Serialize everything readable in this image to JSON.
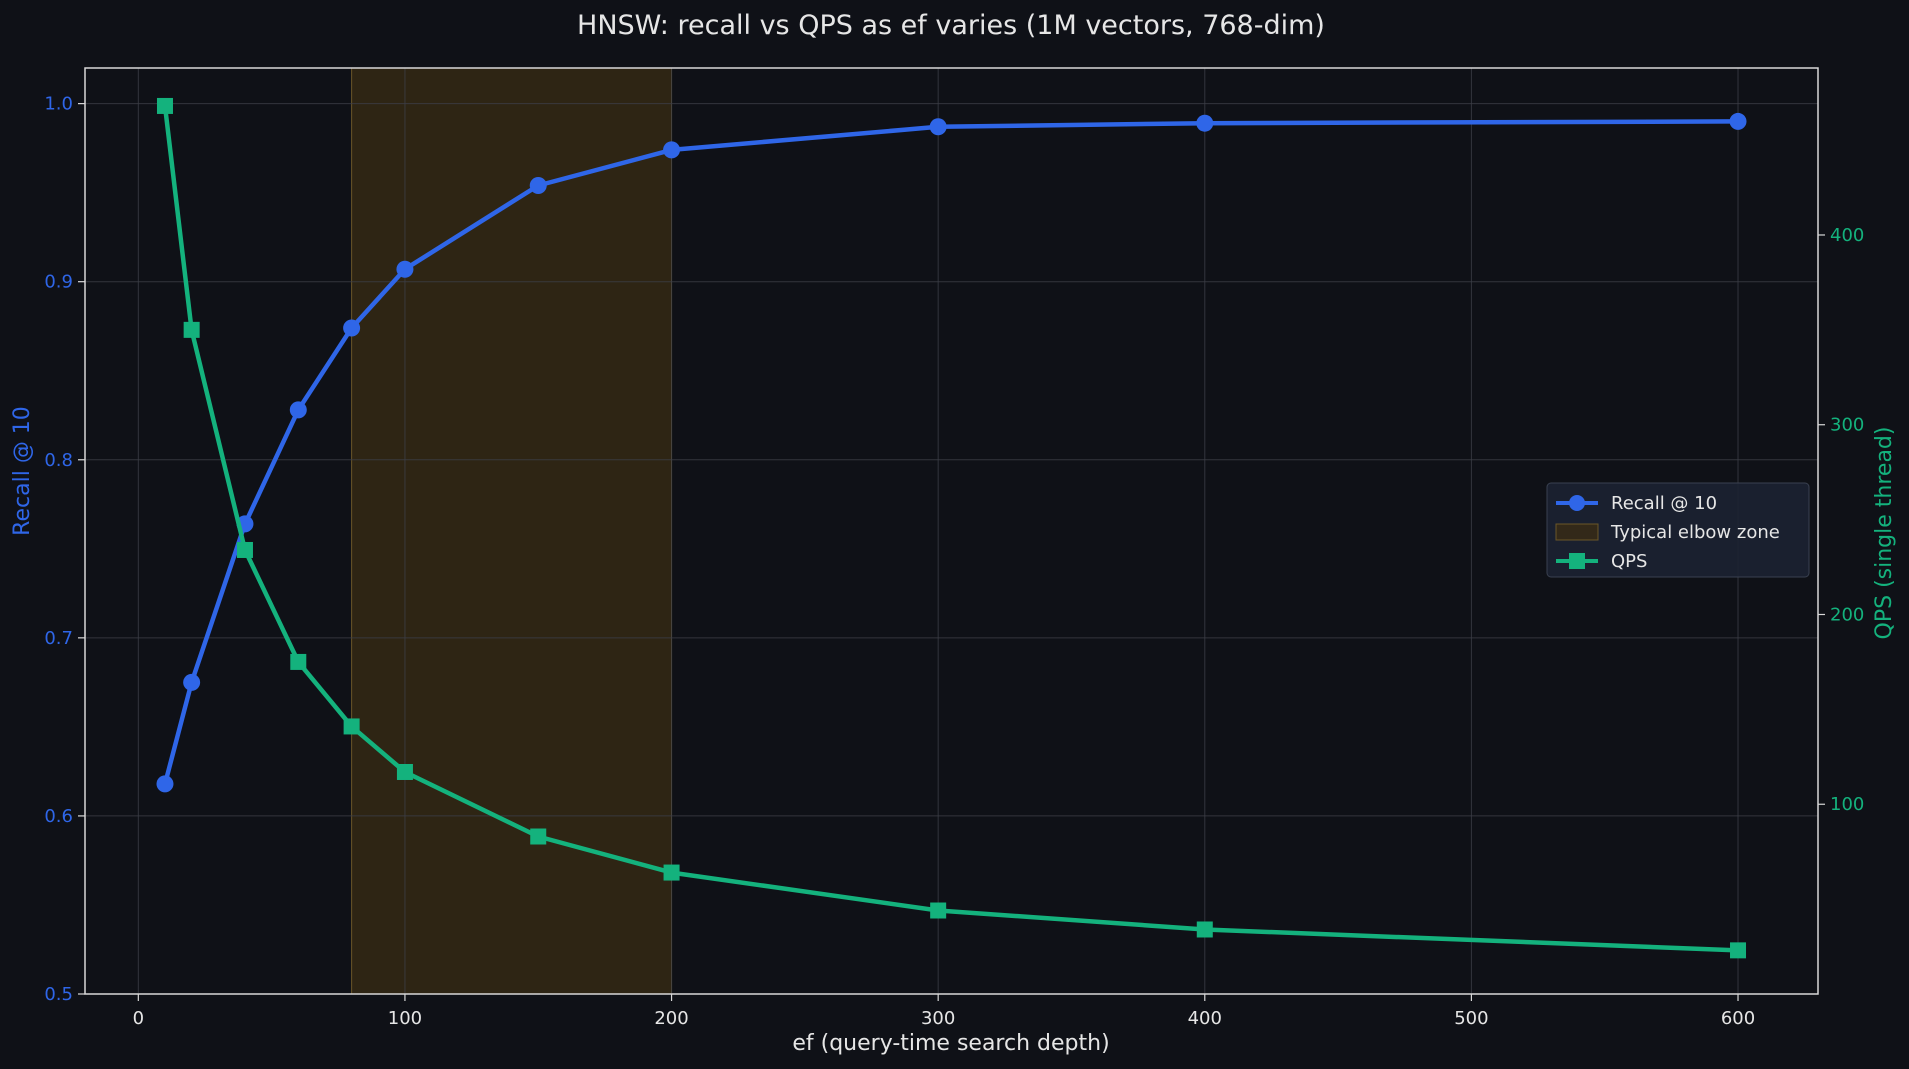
{
  "colors": {
    "background": "#0f1117",
    "recall": "#2f66e8",
    "qps": "#14b27d",
    "elbow_fill": "#3a2c14",
    "elbow_edge": "#6b5628",
    "grid": "#3c3f47",
    "text": "#e6e6e6",
    "legend_bg": "#1b2232",
    "legend_border": "#3a4150"
  },
  "chart_data": {
    "type": "line",
    "title": "HNSW: recall vs QPS as ef varies (1M vectors, 768-dim)",
    "xlabel": "ef (query-time search depth)",
    "ylabel_left": "Recall @ 10",
    "ylabel_right": "QPS (single thread)",
    "xlim": [
      -20,
      630
    ],
    "ylim_left": [
      0.5,
      1.02
    ],
    "ylim_right": [
      0,
      488
    ],
    "x_ticks": [
      0,
      100,
      200,
      300,
      400,
      500,
      600
    ],
    "y_left_ticks": [
      0.5,
      0.6,
      0.7,
      0.8,
      0.9,
      1.0
    ],
    "y_left_tick_labels": [
      "0.5",
      "0.6",
      "0.7",
      "0.8",
      "0.9",
      "1.0"
    ],
    "y_right_ticks": [
      100,
      200,
      300,
      400
    ],
    "grid": true,
    "legend_position": "center-right",
    "x": [
      10,
      20,
      40,
      60,
      80,
      100,
      150,
      200,
      300,
      400,
      600
    ],
    "series": [
      {
        "name": "Recall @ 10",
        "axis": "left",
        "marker": "circle",
        "values": [
          0.618,
          0.675,
          0.764,
          0.828,
          0.874,
          0.907,
          0.954,
          0.974,
          0.987,
          0.989,
          0.99
        ]
      },
      {
        "name": "QPS",
        "axis": "right",
        "marker": "square",
        "values": [
          468,
          350,
          234,
          175,
          141,
          117,
          83,
          64,
          44,
          34,
          23
        ]
      }
    ],
    "shaded_region": {
      "name": "Typical elbow zone",
      "x_range": [
        80,
        200
      ]
    },
    "legend": [
      "Recall @ 10",
      "Typical elbow zone",
      "QPS"
    ]
  }
}
